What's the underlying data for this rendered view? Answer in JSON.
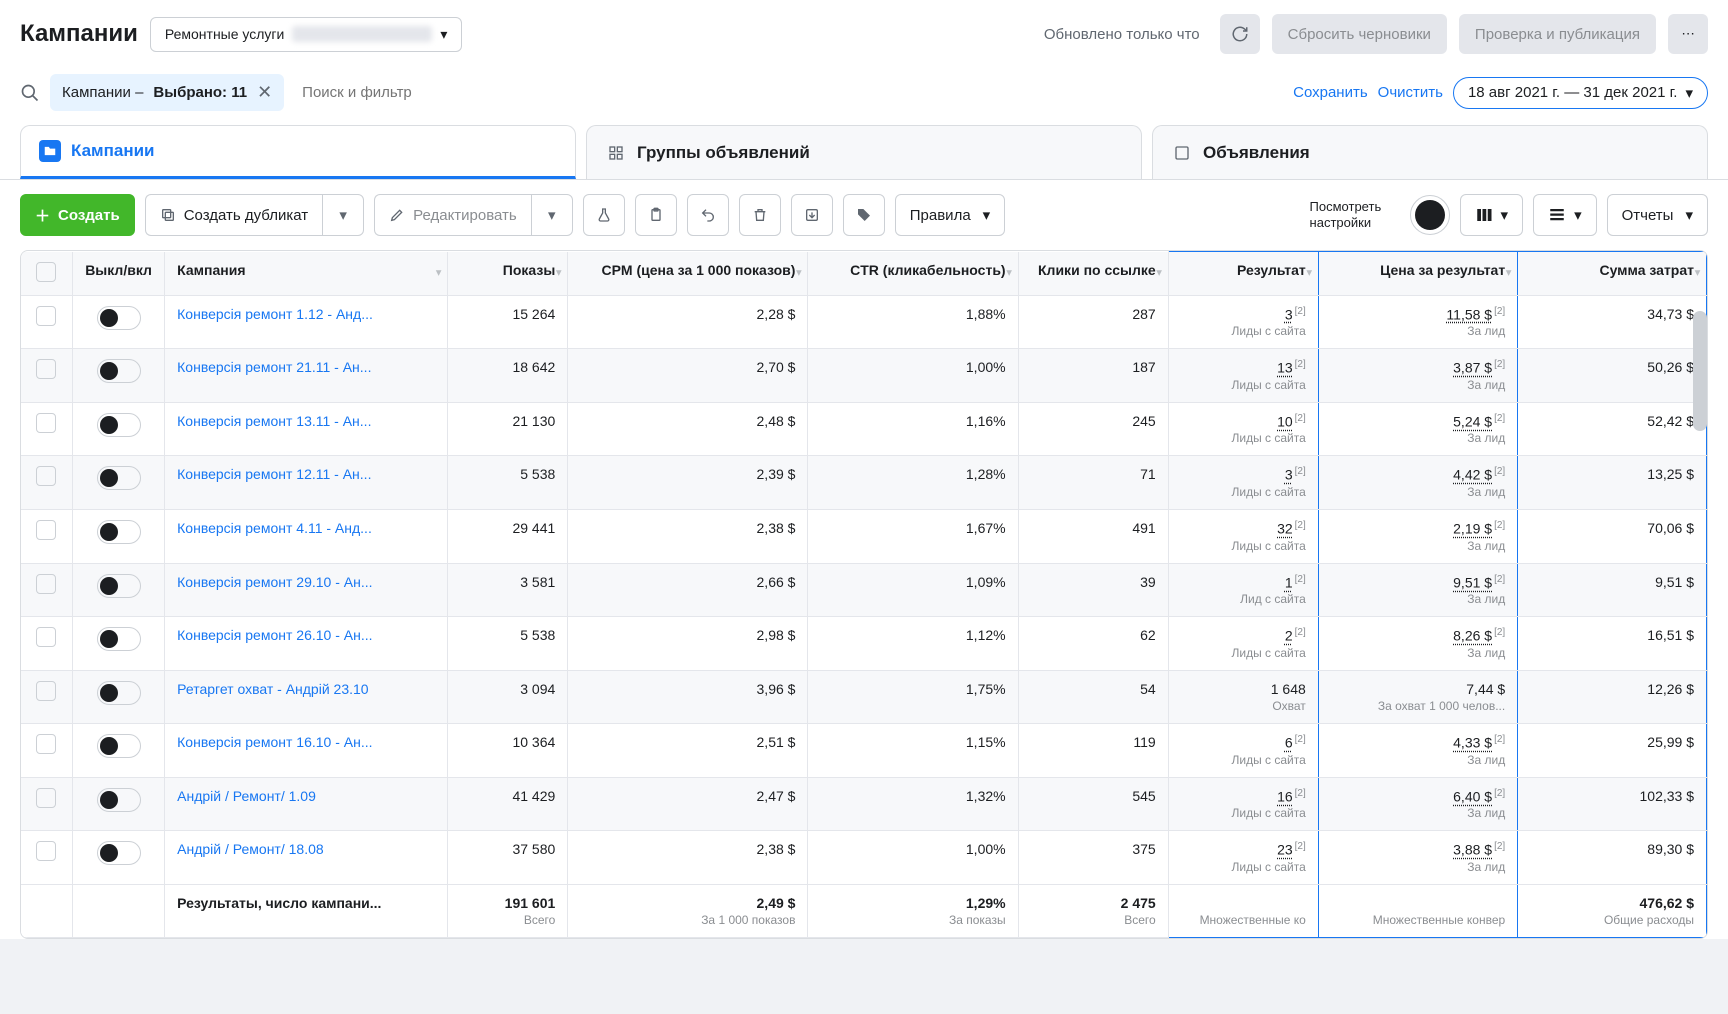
{
  "header": {
    "title": "Кампании",
    "account_label": "Ремонтные услуги",
    "updated_text": "Обновлено только что",
    "reset_drafts": "Сбросить черновики",
    "review_publish": "Проверка и публикация"
  },
  "search": {
    "chip_prefix": "Кампании – ",
    "chip_bold": "Выбрано: 11",
    "placeholder": "Поиск и фильтр",
    "save_link": "Сохранить",
    "clear_link": "Очистить",
    "date_range": "18 авг 2021 г. — 31 дек 2021 г."
  },
  "tabs": {
    "campaigns": "Кампании",
    "adsets": "Группы объявлений",
    "ads": "Объявления"
  },
  "toolbar": {
    "create": "Создать",
    "duplicate": "Создать дубликат",
    "edit": "Редактировать",
    "rules": "Правила",
    "view_settings": "Посмотреть настройки",
    "reports": "Отчеты"
  },
  "columns": {
    "toggle": "Выкл/вкл",
    "campaign": "Кампания",
    "impressions": "Показы",
    "cpm": "CPM (цена за 1 000 показов)",
    "ctr": "CTR (кликабельность)",
    "link_clicks": "Клики по ссылке",
    "result": "Результат",
    "cost_per_result": "Цена за результат",
    "spend": "Сумма затрат"
  },
  "row_subs": {
    "leads": "Лиды с сайта",
    "lead_single": "Лид с сайта",
    "reach": "Охват",
    "per_lead": "За лид",
    "per_reach": "За охват 1 000 челов...",
    "sup": "[2]"
  },
  "rows": [
    {
      "name": "Конверсія ремонт 1.12 - Анд...",
      "impr": "15 264",
      "cpm": "2,28 $",
      "ctr": "1,88%",
      "clicks": "287",
      "result": "3",
      "result_sub": "leads",
      "cost": "11,58 $",
      "cost_sub": "per_lead",
      "spend": "34,73 $",
      "dotted": true
    },
    {
      "name": "Конверсія ремонт 21.11 - Ан...",
      "impr": "18 642",
      "cpm": "2,70 $",
      "ctr": "1,00%",
      "clicks": "187",
      "result": "13",
      "result_sub": "leads",
      "cost": "3,87 $",
      "cost_sub": "per_lead",
      "spend": "50,26 $",
      "dotted": true
    },
    {
      "name": "Конверсія ремонт 13.11 - Ан...",
      "impr": "21 130",
      "cpm": "2,48 $",
      "ctr": "1,16%",
      "clicks": "245",
      "result": "10",
      "result_sub": "leads",
      "cost": "5,24 $",
      "cost_sub": "per_lead",
      "spend": "52,42 $",
      "dotted": true
    },
    {
      "name": "Конверсія ремонт 12.11 - Ан...",
      "impr": "5 538",
      "cpm": "2,39 $",
      "ctr": "1,28%",
      "clicks": "71",
      "result": "3",
      "result_sub": "leads",
      "cost": "4,42 $",
      "cost_sub": "per_lead",
      "spend": "13,25 $",
      "dotted": true
    },
    {
      "name": "Конверсія ремонт 4.11 - Анд...",
      "impr": "29 441",
      "cpm": "2,38 $",
      "ctr": "1,67%",
      "clicks": "491",
      "result": "32",
      "result_sub": "leads",
      "cost": "2,19 $",
      "cost_sub": "per_lead",
      "spend": "70,06 $",
      "dotted": true
    },
    {
      "name": "Конверсія ремонт 29.10 - Ан...",
      "impr": "3 581",
      "cpm": "2,66 $",
      "ctr": "1,09%",
      "clicks": "39",
      "result": "1",
      "result_sub": "lead_single",
      "cost": "9,51 $",
      "cost_sub": "per_lead",
      "spend": "9,51 $",
      "dotted": true
    },
    {
      "name": "Конверсія ремонт 26.10 - Ан...",
      "impr": "5 538",
      "cpm": "2,98 $",
      "ctr": "1,12%",
      "clicks": "62",
      "result": "2",
      "result_sub": "leads",
      "cost": "8,26 $",
      "cost_sub": "per_lead",
      "spend": "16,51 $",
      "dotted": true
    },
    {
      "name": "Ретаргет охват - Андрій 23.10",
      "impr": "3 094",
      "cpm": "3,96 $",
      "ctr": "1,75%",
      "clicks": "54",
      "result": "1 648",
      "result_sub": "reach",
      "cost": "7,44 $",
      "cost_sub": "per_reach",
      "spend": "12,26 $",
      "dotted": false
    },
    {
      "name": "Конверсія ремонт 16.10 - Ан...",
      "impr": "10 364",
      "cpm": "2,51 $",
      "ctr": "1,15%",
      "clicks": "119",
      "result": "6",
      "result_sub": "leads",
      "cost": "4,33 $",
      "cost_sub": "per_lead",
      "spend": "25,99 $",
      "dotted": true
    },
    {
      "name": "Андрій / Ремонт/ 1.09",
      "impr": "41 429",
      "cpm": "2,47 $",
      "ctr": "1,32%",
      "clicks": "545",
      "result": "16",
      "result_sub": "leads",
      "cost": "6,40 $",
      "cost_sub": "per_lead",
      "spend": "102,33 $",
      "dotted": true
    },
    {
      "name": "Андрій / Ремонт/ 18.08",
      "impr": "37 580",
      "cpm": "2,38 $",
      "ctr": "1,00%",
      "clicks": "375",
      "result": "23",
      "result_sub": "leads",
      "cost": "3,88 $",
      "cost_sub": "per_lead",
      "spend": "89,30 $",
      "dotted": true
    }
  ],
  "footer": {
    "label": "Результаты, число кампани...",
    "impr": "191 601",
    "impr_sub": "Всего",
    "cpm": "2,49 $",
    "cpm_sub": "За 1 000 показов",
    "ctr": "1,29%",
    "ctr_sub": "За показы",
    "clicks": "2 475",
    "clicks_sub": "Всего",
    "result": "Множественные ко",
    "cost": "Множественные конвер",
    "spend": "476,62 $",
    "spend_sub": "Общие расходы"
  }
}
